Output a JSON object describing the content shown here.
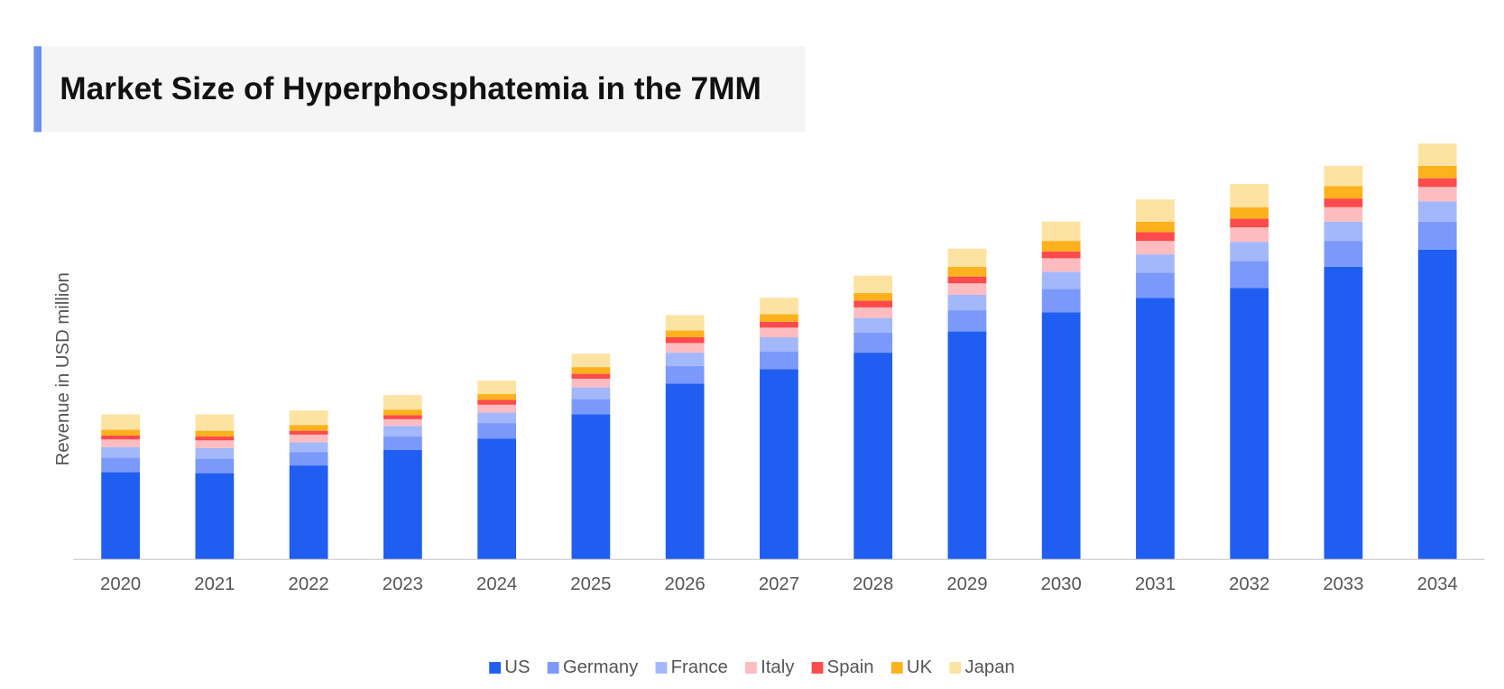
{
  "chart_data": {
    "type": "stacked_bar",
    "title": "Market Size of Hyperphosphatemia in the 7MM",
    "y_label": "Revenue in USD million",
    "categories": [
      "2020",
      "2021",
      "2022",
      "2023",
      "2024",
      "2025",
      "2026",
      "2027",
      "2028",
      "2029",
      "2030",
      "2031",
      "2032",
      "2033",
      "2034"
    ],
    "ylim": [
      0,
      450
    ],
    "legend": "bottom",
    "series": [
      {
        "name": "US",
        "color": "#1f5ef0",
        "values": [
          90,
          89,
          97,
          113,
          125,
          150,
          182,
          197,
          214,
          236,
          256,
          271,
          281,
          303,
          321
        ]
      },
      {
        "name": "Germany",
        "color": "#7b98fb",
        "values": [
          15,
          15,
          14,
          14,
          16,
          16,
          18,
          18,
          21,
          22,
          24,
          26,
          28,
          27,
          29
        ]
      },
      {
        "name": "France",
        "color": "#a3b8fb",
        "values": [
          11,
          11,
          10,
          11,
          11,
          12,
          14,
          15,
          15,
          16,
          18,
          19,
          20,
          20,
          21
        ]
      },
      {
        "name": "Italy",
        "color": "#fdbcbf",
        "values": [
          8,
          8,
          8,
          7,
          8,
          9,
          10,
          10,
          11,
          12,
          14,
          14,
          15,
          15,
          15
        ]
      },
      {
        "name": "Spain",
        "color": "#fd4a4c",
        "values": [
          4,
          4,
          4,
          4,
          5,
          5,
          6,
          6,
          7,
          7,
          7,
          9,
          9,
          9,
          9
        ]
      },
      {
        "name": "UK",
        "color": "#fcb11d",
        "values": [
          6,
          6,
          6,
          6,
          6,
          7,
          7,
          8,
          8,
          10,
          11,
          11,
          12,
          13,
          13
        ]
      },
      {
        "name": "Japan",
        "color": "#fde3a2",
        "values": [
          16,
          17,
          15,
          15,
          14,
          14,
          16,
          17,
          18,
          19,
          20,
          23,
          24,
          21,
          23
        ]
      }
    ]
  }
}
